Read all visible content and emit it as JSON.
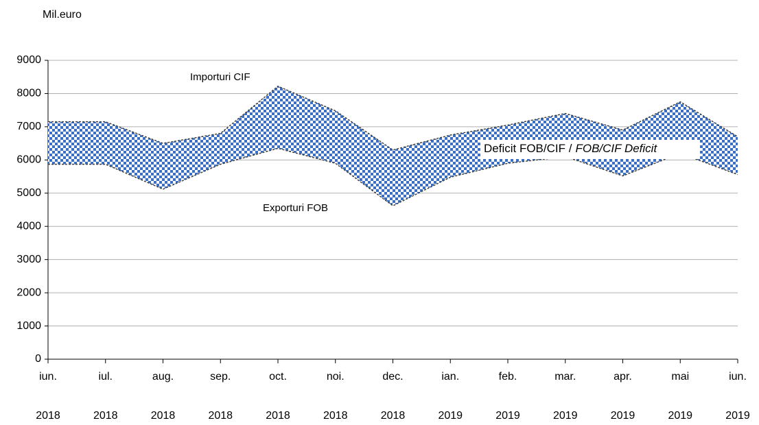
{
  "chart_data": {
    "type": "area_band",
    "y_label": "Mil.euro",
    "categories": [
      [
        "iun.",
        "2018"
      ],
      [
        "iul.",
        "2018"
      ],
      [
        "aug.",
        "2018"
      ],
      [
        "sep.",
        "2018"
      ],
      [
        "oct.",
        "2018"
      ],
      [
        "noi.",
        "2018"
      ],
      [
        "dec.",
        "2018"
      ],
      [
        "ian.",
        "2019"
      ],
      [
        "feb.",
        "2019"
      ],
      [
        "mar.",
        "2019"
      ],
      [
        "apr.",
        "2019"
      ],
      [
        "mai",
        "2019"
      ],
      [
        "iun.",
        "2019"
      ]
    ],
    "series": [
      {
        "name": "Importuri CIF",
        "color": "#404040",
        "values": [
          7150,
          7150,
          6500,
          6800,
          8220,
          7480,
          6300,
          6750,
          7050,
          7400,
          6900,
          7750,
          6700
        ]
      },
      {
        "name": "Exporturi FOB",
        "color": "#404040",
        "values": [
          5870,
          5870,
          5120,
          5870,
          6350,
          5900,
          4620,
          5480,
          5900,
          6100,
          5520,
          6200,
          5560
        ]
      }
    ],
    "fill_color": "#3a6fc4",
    "annotations": [
      "Deficit FOB/CIF /",
      "FOB/CIF Deficit"
    ],
    "ylim": [
      0,
      9000
    ],
    "yticks": [
      0,
      1000,
      2000,
      3000,
      4000,
      5000,
      6000,
      7000,
      8000,
      9000
    ],
    "grid": true
  }
}
